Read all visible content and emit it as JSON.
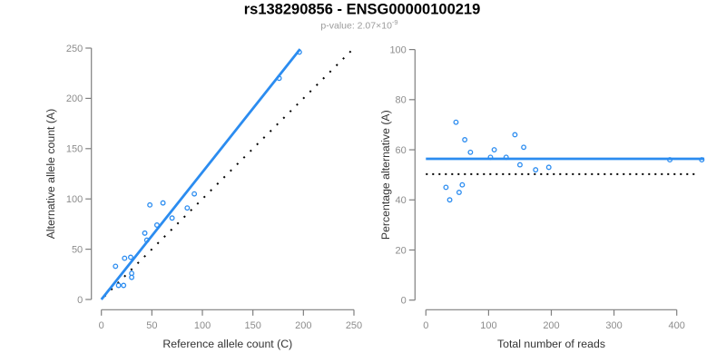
{
  "header": {
    "title": "rs138290856 - ENSG00000100219",
    "subtitle_prefix": "p-value: 2.07×10",
    "subtitle_exponent": "-9"
  },
  "colors": {
    "accent_blue": "#2b8cf0",
    "reference_black": "#000000",
    "axis_gray": "#7f7f7f",
    "tick_label_gray": "#8c8c8c",
    "title_black": "#000000",
    "subtitle_gray": "#9b9b9b"
  },
  "chart_data": [
    {
      "type": "scatter",
      "xlabel": "Reference allele count (C)",
      "ylabel": "Alternative allele count (A)",
      "xlim": [
        0,
        250
      ],
      "ylim": [
        0,
        250
      ],
      "xticks": [
        0,
        50,
        100,
        150,
        200,
        250
      ],
      "yticks": [
        0,
        50,
        100,
        150,
        200,
        250
      ],
      "grid": false,
      "legend": "none",
      "marker": "open-circle",
      "points": [
        [
          14,
          33
        ],
        [
          17,
          14
        ],
        [
          22,
          14
        ],
        [
          23,
          41
        ],
        [
          29,
          42
        ],
        [
          30,
          22
        ],
        [
          30,
          26
        ],
        [
          43,
          66
        ],
        [
          45,
          59
        ],
        [
          48,
          94
        ],
        [
          55,
          74
        ],
        [
          61,
          96
        ],
        [
          70,
          81
        ],
        [
          85,
          91
        ],
        [
          92,
          105
        ],
        [
          176,
          220
        ],
        [
          196,
          246
        ]
      ],
      "fit_line": {
        "style": "solid",
        "x1": 0,
        "y1": 0,
        "x2": 196.7,
        "y2": 249
      },
      "reference_line": {
        "style": "dotted",
        "x1": 3,
        "y1": 3,
        "x2": 247,
        "y2": 247
      }
    },
    {
      "type": "scatter",
      "xlabel": "Total number of reads",
      "ylabel": "Percentage alternative (A)",
      "xlim": [
        0,
        450
      ],
      "ylim": [
        0,
        100
      ],
      "xticks": [
        0,
        100,
        200,
        300,
        400
      ],
      "yticks": [
        0,
        20,
        40,
        60,
        80,
        100
      ],
      "grid": false,
      "legend": "none",
      "marker": "open-circle",
      "points": [
        [
          32,
          45
        ],
        [
          38,
          40
        ],
        [
          48,
          71
        ],
        [
          53,
          43
        ],
        [
          58,
          46
        ],
        [
          62,
          64
        ],
        [
          71,
          59
        ],
        [
          103,
          57
        ],
        [
          109,
          60
        ],
        [
          128,
          57
        ],
        [
          142,
          66
        ],
        [
          150,
          54
        ],
        [
          156,
          61
        ],
        [
          175,
          52
        ],
        [
          196,
          53
        ],
        [
          389,
          56
        ],
        [
          440,
          56
        ]
      ],
      "fit_line": {
        "style": "solid",
        "x1": 0,
        "y1": 56.4,
        "x2": 444,
        "y2": 56.4
      },
      "reference_line": {
        "style": "dotted",
        "x1": 0,
        "y1": 50.3,
        "x2": 433,
        "y2": 50.3
      }
    }
  ]
}
